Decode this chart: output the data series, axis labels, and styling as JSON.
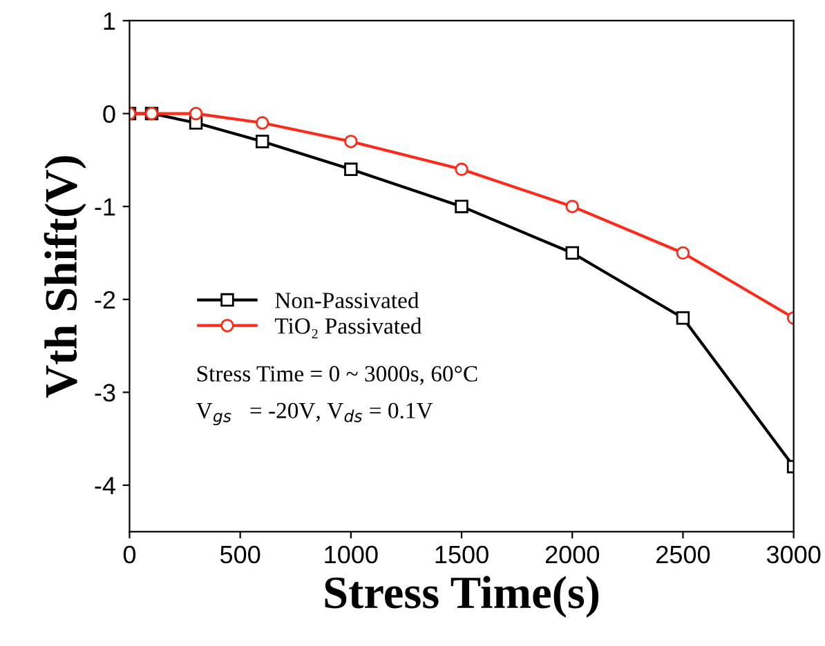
{
  "chart_data": {
    "type": "line",
    "xlabel": "Stress Time(s)",
    "ylabel": "Vth Shift(V)",
    "x": [
      0,
      100,
      300,
      600,
      1000,
      1500,
      2000,
      2500,
      3000
    ],
    "series": [
      {
        "name": "Non-Passivated",
        "color": "#000000",
        "marker": "square",
        "values": [
          0,
          0,
          -0.1,
          -0.3,
          -0.6,
          -1.0,
          -1.5,
          -2.2,
          -3.8
        ]
      },
      {
        "name": "TiO₂ Passivated",
        "color": "#ff2a1a",
        "marker": "circle",
        "values": [
          0,
          0,
          0,
          -0.1,
          -0.3,
          -0.6,
          -1.0,
          -1.5,
          -2.2
        ]
      }
    ],
    "xlim": [
      0,
      3000
    ],
    "xticks": [
      0,
      500,
      1000,
      1500,
      2000,
      2500,
      3000
    ],
    "ylim": [
      -4.5,
      1
    ],
    "yticks": [
      -4,
      -3,
      -2,
      -1,
      0,
      1
    ],
    "legend": "bottom left",
    "grid": false,
    "annotations": [
      "Stress Time = 0 ~ 3000s, 60°C",
      "V$_{gs}$   = -20V, V$_{ds}$ = 0.1V"
    ]
  }
}
